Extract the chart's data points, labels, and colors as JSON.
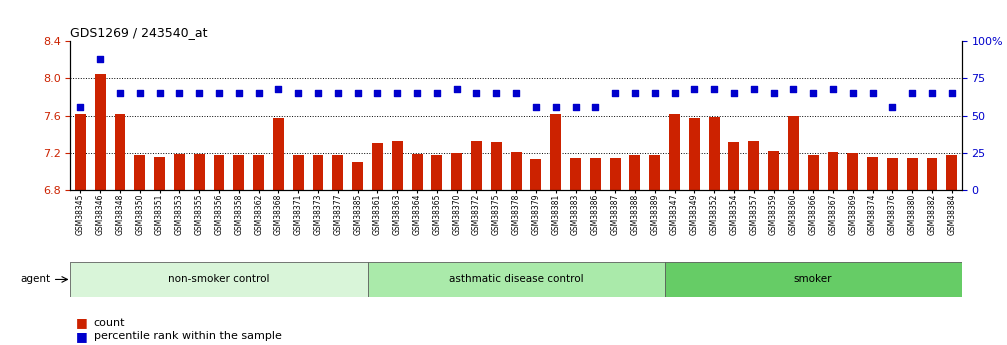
{
  "title": "GDS1269 / 243540_at",
  "categories": [
    "GSM38345",
    "GSM38346",
    "GSM38348",
    "GSM38350",
    "GSM38351",
    "GSM38353",
    "GSM38355",
    "GSM38356",
    "GSM38358",
    "GSM38362",
    "GSM38368",
    "GSM38371",
    "GSM38373",
    "GSM38377",
    "GSM38385",
    "GSM38361",
    "GSM38363",
    "GSM38364",
    "GSM38365",
    "GSM38370",
    "GSM38372",
    "GSM38375",
    "GSM38378",
    "GSM38379",
    "GSM38381",
    "GSM38383",
    "GSM38386",
    "GSM38387",
    "GSM38388",
    "GSM38389",
    "GSM38347",
    "GSM38349",
    "GSM38352",
    "GSM38354",
    "GSM38357",
    "GSM38359",
    "GSM38360",
    "GSM38366",
    "GSM38367",
    "GSM38369",
    "GSM38374",
    "GSM38376",
    "GSM38380",
    "GSM38382",
    "GSM38384"
  ],
  "bar_values": [
    7.62,
    8.05,
    7.62,
    7.18,
    7.15,
    7.19,
    7.19,
    7.18,
    7.17,
    7.17,
    7.57,
    7.17,
    7.18,
    7.17,
    7.1,
    7.3,
    7.33,
    7.19,
    7.17,
    7.2,
    7.33,
    7.32,
    7.21,
    7.13,
    7.62,
    7.14,
    7.14,
    7.14,
    7.18,
    7.18,
    7.62,
    7.57,
    7.59,
    7.32,
    7.33,
    7.22,
    7.6,
    7.18,
    7.21,
    7.2,
    7.15,
    7.14,
    7.14,
    7.14,
    7.17
  ],
  "scatter_percentiles": [
    56,
    88,
    65,
    65,
    65,
    65,
    65,
    65,
    65,
    65,
    68,
    65,
    65,
    65,
    65,
    65,
    65,
    65,
    65,
    68,
    65,
    65,
    65,
    56,
    56,
    56,
    56,
    65,
    65,
    65,
    65,
    68,
    68,
    65,
    68,
    65,
    68,
    65,
    68,
    65,
    65,
    56,
    65,
    65,
    65
  ],
  "groups": [
    {
      "label": "non-smoker control",
      "start": 0,
      "end": 14,
      "color": "#d9f5d9"
    },
    {
      "label": "asthmatic disease control",
      "start": 15,
      "end": 29,
      "color": "#aaeaaa"
    },
    {
      "label": "smoker",
      "start": 30,
      "end": 44,
      "color": "#66cc66"
    }
  ],
  "ylim_left": [
    6.8,
    8.4
  ],
  "ylim_right": [
    0,
    100
  ],
  "yticks_left": [
    6.8,
    7.2,
    7.6,
    8.0,
    8.4
  ],
  "yticks_right": [
    0,
    25,
    50,
    75,
    100
  ],
  "ytick_labels_right": [
    "0",
    "25",
    "50",
    "75",
    "100%"
  ],
  "bar_color": "#cc2200",
  "scatter_color": "#0000cc",
  "bar_width": 0.55,
  "bg_color": "#ffffff",
  "agent_label": "agent",
  "legend_items": [
    {
      "label": "count",
      "color": "#cc2200"
    },
    {
      "label": "percentile rank within the sample",
      "color": "#0000cc"
    }
  ]
}
